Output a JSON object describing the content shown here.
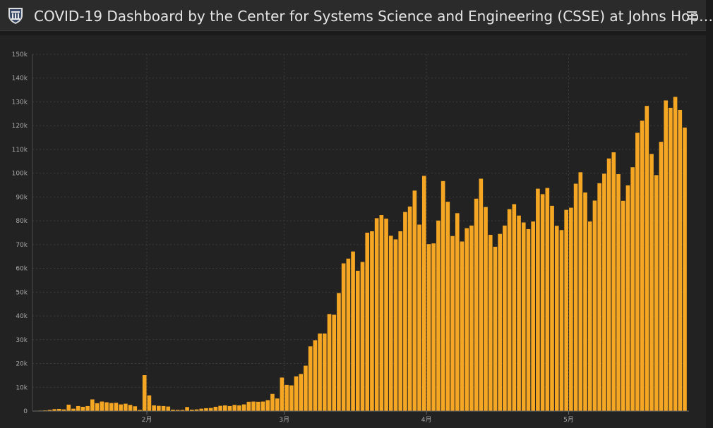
{
  "header": {
    "title": "COVID-19 Dashboard by the Center for Systems Science and Engineering (CSSE) at Johns Hop…",
    "logo_icon": "university-shield-icon",
    "menu_icon": "hamburger-menu-icon"
  },
  "colors": {
    "bar": "#f5a623",
    "background": "#222222",
    "header": "#2b2b2b",
    "grid": "#3c3c3c",
    "tick_text": "#a9a9a9"
  },
  "chart_data": {
    "type": "bar",
    "title": "",
    "xlabel": "",
    "ylabel": "",
    "ylim": [
      0,
      150000
    ],
    "grid": true,
    "y_ticks": [
      {
        "value": 0,
        "label": "0"
      },
      {
        "value": 10000,
        "label": "10k"
      },
      {
        "value": 20000,
        "label": "20k"
      },
      {
        "value": 30000,
        "label": "30k"
      },
      {
        "value": 40000,
        "label": "40k"
      },
      {
        "value": 50000,
        "label": "50k"
      },
      {
        "value": 60000,
        "label": "60k"
      },
      {
        "value": 70000,
        "label": "70k"
      },
      {
        "value": 80000,
        "label": "80k"
      },
      {
        "value": 90000,
        "label": "90k"
      },
      {
        "value": 100000,
        "label": "100k"
      },
      {
        "value": 110000,
        "label": "110k"
      },
      {
        "value": 120000,
        "label": "120k"
      },
      {
        "value": 130000,
        "label": "130k"
      },
      {
        "value": 140000,
        "label": "140k"
      },
      {
        "value": 150000,
        "label": "150k"
      }
    ],
    "x_ticks": [
      {
        "label": "2月",
        "index": 23
      },
      {
        "label": "3月",
        "index": 52
      },
      {
        "label": "4月",
        "index": 82
      },
      {
        "label": "5月",
        "index": 112
      }
    ],
    "values": [
      200,
      300,
      500,
      800,
      900,
      700,
      2700,
      1000,
      2100,
      1800,
      2100,
      4900,
      3300,
      4000,
      3700,
      3400,
      3500,
      2800,
      3100,
      2600,
      2000,
      500,
      15100,
      6600,
      2400,
      2200,
      2100,
      1900,
      600,
      500,
      500,
      1700,
      600,
      700,
      1000,
      1200,
      1300,
      1800,
      2200,
      2400,
      2100,
      2600,
      2400,
      2800,
      3900,
      4000,
      3900,
      4000,
      4600,
      7200,
      5300,
      14100,
      11000,
      10800,
      14600,
      15600,
      19100,
      27200,
      29800,
      32600,
      32600,
      40800,
      40500,
      49600,
      62100,
      64100,
      67100,
      59000,
      62700,
      75000,
      75600,
      81100,
      82400,
      80900,
      73700,
      72200,
      75600,
      83700,
      86000,
      92700,
      78400,
      98900,
      70200,
      70500,
      80100,
      96700,
      88000,
      73600,
      83200,
      71300,
      76900,
      78000,
      89300,
      97700,
      85800,
      74100,
      69100,
      74500,
      78000,
      84900,
      87000,
      82200,
      79300,
      76500,
      79700,
      93500,
      91200,
      93800,
      86300,
      77900,
      76100,
      84600,
      85500,
      95600,
      100400,
      91900,
      79700,
      88500,
      95800,
      99800,
      106200,
      108800,
      99600,
      88400,
      94900,
      102500,
      117000,
      122100,
      128300,
      108100,
      99200,
      113200,
      130600,
      127500,
      132100,
      126600,
      119200
    ]
  }
}
